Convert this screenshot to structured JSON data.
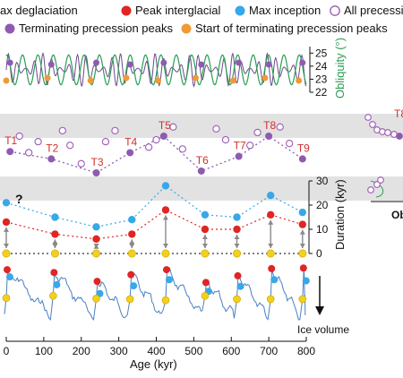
{
  "legend": [
    {
      "label": "Max deglaciation",
      "shown_text": "ax deglaciation",
      "marker": "yellow-dot",
      "color": "#f2d01d"
    },
    {
      "label": "Peak interglacial",
      "marker": "red-dot",
      "color": "#e02525"
    },
    {
      "label": "Max inception",
      "marker": "blue-dot",
      "color": "#37a8e8"
    },
    {
      "label": "All precession peaks",
      "marker": "open-purple-circle",
      "color": "#9b59b6"
    },
    {
      "label": "Terminating precession peaks",
      "marker": "filled-purple-dot",
      "color": "#8e5bb0"
    },
    {
      "label": "Start of terminating precession peaks",
      "marker": "orange-dot",
      "color": "#f09a35"
    }
  ],
  "right_labels": {
    "obliquity_axis": "Obliquity (°)",
    "duration_axis": "Duration (kyr)",
    "ice_volume": "Ice volume",
    "cut_text": "Ob"
  },
  "annotations": {
    "terminations": [
      "T1",
      "T2",
      "T3",
      "T4",
      "T5",
      "T6",
      "T7",
      "T8",
      "T9"
    ],
    "question": "?",
    "inset_cut": "T8"
  },
  "chart_data": {
    "type": "scatter",
    "x_axis": {
      "label": "Age (kyr)",
      "range": [
        0,
        800
      ],
      "ticks": [
        0,
        100,
        200,
        300,
        400,
        500,
        600,
        700,
        800
      ]
    },
    "obliquity": {
      "ticks": [
        22,
        23,
        24,
        25
      ],
      "ylim": [
        22,
        25.5
      ],
      "terminating_peaks_x": [
        10,
        120,
        240,
        330,
        420,
        520,
        620,
        700,
        790
      ],
      "start_peaks_x": [
        0,
        110,
        225,
        320,
        405,
        505,
        605,
        690,
        780
      ]
    },
    "precession_peaks": {
      "terminating": [
        {
          "label": "T1",
          "x": 10,
          "y": 0.58
        },
        {
          "label": "T2",
          "x": 120,
          "y": 0.38
        },
        {
          "label": "T3",
          "x": 240,
          "y": 0.0
        },
        {
          "label": "T4",
          "x": 330,
          "y": 0.55
        },
        {
          "label": "T5",
          "x": 420,
          "y": 1.0
        },
        {
          "label": "T6",
          "x": 520,
          "y": 0.05
        },
        {
          "label": "T7",
          "x": 620,
          "y": 0.45
        },
        {
          "label": "T8",
          "x": 700,
          "y": 1.0
        },
        {
          "label": "T9",
          "x": 790,
          "y": 0.38
        }
      ],
      "all_open": [
        {
          "x": 35,
          "y": 1.0
        },
        {
          "x": 60,
          "y": 0.55
        },
        {
          "x": 85,
          "y": 0.85
        },
        {
          "x": 150,
          "y": 1.15
        },
        {
          "x": 170,
          "y": 0.75
        },
        {
          "x": 200,
          "y": 0.25
        },
        {
          "x": 265,
          "y": 0.85
        },
        {
          "x": 290,
          "y": 1.15
        },
        {
          "x": 380,
          "y": 0.7
        },
        {
          "x": 400,
          "y": 0.9
        },
        {
          "x": 445,
          "y": 1.25
        },
        {
          "x": 470,
          "y": 0.65
        },
        {
          "x": 560,
          "y": 1.2
        },
        {
          "x": 585,
          "y": 0.9
        },
        {
          "x": 650,
          "y": 0.75
        },
        {
          "x": 670,
          "y": 1.1
        },
        {
          "x": 730,
          "y": 1.25
        },
        {
          "x": 755,
          "y": 0.8
        }
      ]
    },
    "duration": {
      "ylabel": "Duration (kyr)",
      "ticks": [
        0,
        10,
        20,
        30
      ],
      "ylim": [
        0,
        30
      ],
      "x": [
        0,
        130,
        240,
        335,
        425,
        530,
        615,
        705,
        790
      ],
      "series": [
        {
          "name": "Max inception",
          "values": [
            21,
            15,
            11,
            14,
            28,
            16,
            15,
            24,
            17
          ]
        },
        {
          "name": "Peak interglacial",
          "values": [
            13,
            8,
            6,
            8,
            18,
            10,
            10,
            16,
            12
          ]
        },
        {
          "name": "Max deglaciation",
          "values": [
            0,
            0,
            0,
            0,
            0,
            0,
            0,
            0,
            0
          ]
        }
      ]
    },
    "ice_volume": {
      "ylabel": "Ice volume",
      "terminations": [
        {
          "x": 0,
          "red": 0.05,
          "blue": 0.18,
          "yellow": 0.56
        },
        {
          "x": 125,
          "red": 0.1,
          "blue": 0.32,
          "yellow": 0.52
        },
        {
          "x": 240,
          "red": 0.26,
          "blue": 0.48,
          "yellow": 0.57
        },
        {
          "x": 330,
          "red": 0.14,
          "blue": 0.34,
          "yellow": 0.58
        },
        {
          "x": 425,
          "red": 0.05,
          "blue": 0.23,
          "yellow": 0.6
        },
        {
          "x": 530,
          "red": 0.28,
          "blue": 0.44,
          "yellow": 0.52
        },
        {
          "x": 615,
          "red": 0.16,
          "blue": 0.35,
          "yellow": 0.58
        },
        {
          "x": 705,
          "red": 0.03,
          "blue": 0.23,
          "yellow": 0.58
        },
        {
          "x": 790,
          "red": 0.02,
          "blue": 0.25,
          "yellow": 0.58
        }
      ]
    }
  }
}
